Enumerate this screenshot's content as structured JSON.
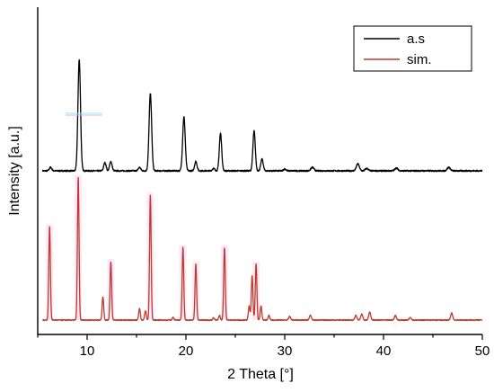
{
  "chart_data": {
    "type": "line",
    "title": "",
    "xlabel": "2 Theta [°]",
    "ylabel": "Intensity [a.u.]",
    "xlim": [
      5,
      50
    ],
    "xticks": [
      10,
      20,
      30,
      40,
      50
    ],
    "ylim": [
      0,
      1
    ],
    "yticks_labeled": false,
    "grid": false,
    "legend_position": "top-right",
    "series": [
      {
        "name": "a.s",
        "color": "#000000",
        "baseline": 0.487,
        "noise": 0.006,
        "peaks": [
          {
            "x": 6.3,
            "h": 0.015,
            "w": 0.12
          },
          {
            "x": 9.2,
            "h": 0.475,
            "w": 0.13
          },
          {
            "x": 11.8,
            "h": 0.035,
            "w": 0.12
          },
          {
            "x": 12.4,
            "h": 0.04,
            "w": 0.12
          },
          {
            "x": 15.3,
            "h": 0.015,
            "w": 0.12
          },
          {
            "x": 16.4,
            "h": 0.33,
            "w": 0.13
          },
          {
            "x": 19.8,
            "h": 0.23,
            "w": 0.13
          },
          {
            "x": 21.0,
            "h": 0.04,
            "w": 0.12
          },
          {
            "x": 22.8,
            "h": 0.01,
            "w": 0.12
          },
          {
            "x": 23.5,
            "h": 0.16,
            "w": 0.12
          },
          {
            "x": 26.9,
            "h": 0.17,
            "w": 0.12
          },
          {
            "x": 27.7,
            "h": 0.05,
            "w": 0.12
          },
          {
            "x": 30.0,
            "h": 0.008,
            "w": 0.12
          },
          {
            "x": 32.8,
            "h": 0.015,
            "w": 0.15
          },
          {
            "x": 37.4,
            "h": 0.03,
            "w": 0.15
          },
          {
            "x": 38.3,
            "h": 0.01,
            "w": 0.15
          },
          {
            "x": 41.3,
            "h": 0.012,
            "w": 0.15
          },
          {
            "x": 46.6,
            "h": 0.015,
            "w": 0.15
          }
        ]
      },
      {
        "name": "sim.",
        "color": "#c0392b",
        "baseline": 0.0,
        "noise": 0.004,
        "peaks": [
          {
            "x": 6.2,
            "h": 0.4,
            "w": 0.08
          },
          {
            "x": 9.1,
            "h": 0.61,
            "w": 0.08
          },
          {
            "x": 11.6,
            "h": 0.1,
            "w": 0.08
          },
          {
            "x": 12.4,
            "h": 0.25,
            "w": 0.08
          },
          {
            "x": 15.3,
            "h": 0.05,
            "w": 0.08
          },
          {
            "x": 15.9,
            "h": 0.04,
            "w": 0.08
          },
          {
            "x": 16.4,
            "h": 0.535,
            "w": 0.08
          },
          {
            "x": 18.7,
            "h": 0.012,
            "w": 0.08
          },
          {
            "x": 19.7,
            "h": 0.31,
            "w": 0.08
          },
          {
            "x": 21.0,
            "h": 0.24,
            "w": 0.08
          },
          {
            "x": 22.8,
            "h": 0.01,
            "w": 0.08
          },
          {
            "x": 23.4,
            "h": 0.02,
            "w": 0.08
          },
          {
            "x": 23.9,
            "h": 0.31,
            "w": 0.08
          },
          {
            "x": 26.4,
            "h": 0.06,
            "w": 0.08
          },
          {
            "x": 26.7,
            "h": 0.19,
            "w": 0.08
          },
          {
            "x": 27.1,
            "h": 0.24,
            "w": 0.08
          },
          {
            "x": 27.6,
            "h": 0.06,
            "w": 0.08
          },
          {
            "x": 28.4,
            "h": 0.02,
            "w": 0.08
          },
          {
            "x": 30.5,
            "h": 0.015,
            "w": 0.1
          },
          {
            "x": 32.6,
            "h": 0.02,
            "w": 0.1
          },
          {
            "x": 37.2,
            "h": 0.02,
            "w": 0.1
          },
          {
            "x": 37.8,
            "h": 0.025,
            "w": 0.1
          },
          {
            "x": 38.6,
            "h": 0.035,
            "w": 0.1
          },
          {
            "x": 41.2,
            "h": 0.02,
            "w": 0.1
          },
          {
            "x": 42.7,
            "h": 0.012,
            "w": 0.1
          },
          {
            "x": 46.9,
            "h": 0.03,
            "w": 0.1
          }
        ]
      }
    ]
  }
}
